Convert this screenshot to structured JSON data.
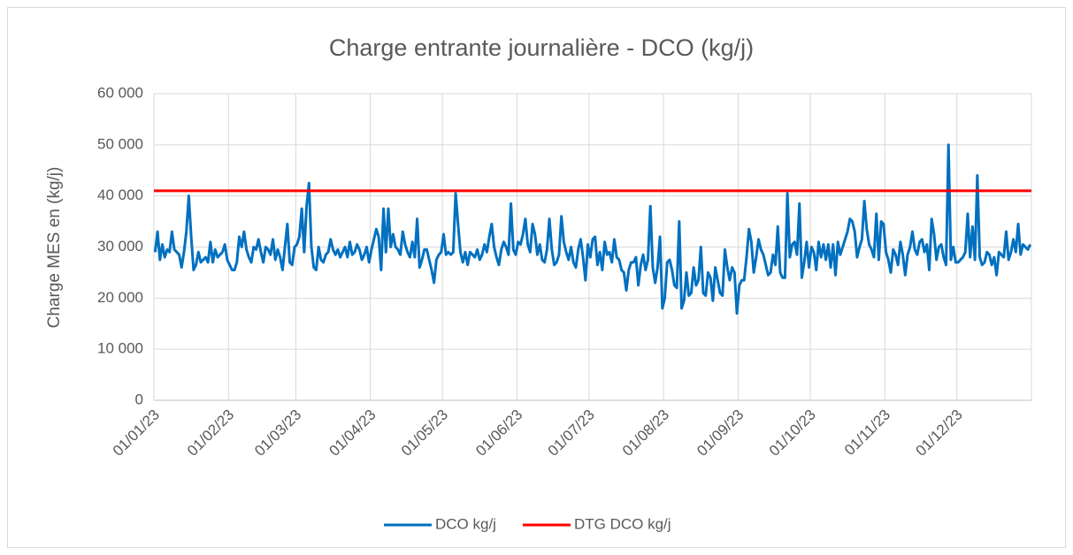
{
  "chart_data": {
    "type": "line",
    "title": "Charge entrante journalière - DCO (kg/j)",
    "y_label": "Charge MES en (kg/j)",
    "categories": [
      "01/01/23",
      null,
      null,
      null,
      null,
      null,
      null,
      null,
      null,
      null,
      null,
      null,
      null,
      null,
      null,
      null,
      null,
      null,
      null,
      null,
      null,
      null,
      null,
      null,
      null,
      null,
      null,
      null,
      null,
      null,
      null,
      "01/02/23",
      null,
      null,
      null,
      null,
      null,
      null,
      null,
      null,
      null,
      null,
      null,
      null,
      null,
      null,
      null,
      null,
      null,
      null,
      null,
      null,
      null,
      null,
      null,
      null,
      null,
      null,
      null,
      "01/03/23",
      null,
      null,
      null,
      null,
      null,
      null,
      null,
      null,
      null,
      null,
      null,
      null,
      null,
      null,
      null,
      null,
      null,
      null,
      null,
      null,
      null,
      null,
      null,
      null,
      null,
      null,
      null,
      null,
      null,
      null,
      "01/04/23",
      null,
      null,
      null,
      null,
      null,
      null,
      null,
      null,
      null,
      null,
      null,
      null,
      null,
      null,
      null,
      null,
      null,
      null,
      null,
      null,
      null,
      null,
      null,
      null,
      null,
      null,
      null,
      null,
      null,
      "01/05/23",
      null,
      null,
      null,
      null,
      null,
      null,
      null,
      null,
      null,
      null,
      null,
      null,
      null,
      null,
      null,
      null,
      null,
      null,
      null,
      null,
      null,
      null,
      null,
      null,
      null,
      null,
      null,
      null,
      null,
      null,
      "01/06/23",
      null,
      null,
      null,
      null,
      null,
      null,
      null,
      null,
      null,
      null,
      null,
      null,
      null,
      null,
      null,
      null,
      null,
      null,
      null,
      null,
      null,
      null,
      null,
      null,
      null,
      null,
      null,
      null,
      null,
      "01/07/23",
      null,
      null,
      null,
      null,
      null,
      null,
      null,
      null,
      null,
      null,
      null,
      null,
      null,
      null,
      null,
      null,
      null,
      null,
      null,
      null,
      null,
      null,
      null,
      null,
      null,
      null,
      null,
      null,
      null,
      null,
      "01/08/23",
      null,
      null,
      null,
      null,
      null,
      null,
      null,
      null,
      null,
      null,
      null,
      null,
      null,
      null,
      null,
      null,
      null,
      null,
      null,
      null,
      null,
      null,
      null,
      null,
      null,
      null,
      null,
      null,
      null,
      null,
      "01/09/23",
      null,
      null,
      null,
      null,
      null,
      null,
      null,
      null,
      null,
      null,
      null,
      null,
      null,
      null,
      null,
      null,
      null,
      null,
      null,
      null,
      null,
      null,
      null,
      null,
      null,
      null,
      null,
      null,
      null,
      "01/10/23",
      null,
      null,
      null,
      null,
      null,
      null,
      null,
      null,
      null,
      null,
      null,
      null,
      null,
      null,
      null,
      null,
      null,
      null,
      null,
      null,
      null,
      null,
      null,
      null,
      null,
      null,
      null,
      null,
      null,
      null,
      "01/11/23",
      null,
      null,
      null,
      null,
      null,
      null,
      null,
      null,
      null,
      null,
      null,
      null,
      null,
      null,
      null,
      null,
      null,
      null,
      null,
      null,
      null,
      null,
      null,
      null,
      null,
      null,
      null,
      null,
      null,
      "01/12/23",
      null,
      null,
      null,
      null,
      null,
      null,
      null,
      null,
      null,
      null,
      null,
      null,
      null,
      null,
      null,
      null,
      null,
      null,
      null,
      null,
      null,
      null,
      null,
      null,
      null,
      null,
      null,
      null,
      null,
      null
    ],
    "series": [
      {
        "name": "DCO kg/j",
        "color": "#0070c0",
        "values": [
          29000,
          33000,
          27500,
          30500,
          28000,
          29500,
          29000,
          33000,
          29500,
          29000,
          28500,
          26000,
          29000,
          33000,
          40000,
          32000,
          25500,
          26500,
          29000,
          27000,
          27500,
          28000,
          27000,
          31000,
          27000,
          29500,
          28000,
          28500,
          29000,
          30500,
          27500,
          26500,
          25500,
          25500,
          27000,
          32000,
          30000,
          33000,
          29500,
          28000,
          27000,
          30000,
          29500,
          31500,
          29000,
          27000,
          30000,
          29500,
          28500,
          31500,
          27500,
          29500,
          28000,
          25500,
          30000,
          34500,
          27000,
          26500,
          30000,
          30500,
          32000,
          37500,
          29000,
          38000,
          42500,
          30000,
          26000,
          25500,
          30000,
          27500,
          27000,
          28500,
          29000,
          31500,
          29500,
          28500,
          29500,
          28000,
          29000,
          30000,
          28000,
          31000,
          28500,
          29000,
          30500,
          29500,
          27500,
          28500,
          30000,
          27000,
          29500,
          31500,
          33500,
          32000,
          25500,
          37500,
          29000,
          37500,
          30000,
          32500,
          30000,
          29500,
          28500,
          33000,
          30500,
          29000,
          28000,
          31000,
          28000,
          35500,
          26000,
          27500,
          29500,
          29500,
          27500,
          25500,
          23000,
          27500,
          28500,
          29000,
          32500,
          28500,
          29000,
          28500,
          29000,
          40500,
          34500,
          29000,
          27000,
          29000,
          26500,
          29000,
          28500,
          28000,
          29500,
          27500,
          28500,
          30500,
          29000,
          32000,
          34500,
          30000,
          28000,
          26500,
          29500,
          31000,
          30000,
          28500,
          38500,
          29500,
          28500,
          31000,
          30500,
          32500,
          35500,
          30500,
          29000,
          34500,
          32500,
          28500,
          30500,
          27500,
          27000,
          29500,
          35500,
          29500,
          26500,
          27000,
          28500,
          36000,
          31000,
          29000,
          27500,
          30000,
          27000,
          26000,
          29500,
          31500,
          28000,
          23500,
          30500,
          28000,
          31500,
          32000,
          26500,
          29000,
          25500,
          31000,
          28500,
          29000,
          27000,
          31500,
          28000,
          27500,
          25500,
          25000,
          21500,
          25500,
          27000,
          27000,
          28000,
          22500,
          26500,
          28500,
          25500,
          27500,
          38000,
          26000,
          23000,
          26000,
          32000,
          18000,
          20000,
          27000,
          27500,
          25500,
          22500,
          22000,
          35000,
          18000,
          19500,
          25000,
          20500,
          21000,
          26000,
          22500,
          23500,
          30000,
          21000,
          20500,
          25000,
          24000,
          19500,
          26000,
          23500,
          21000,
          20500,
          29500,
          26000,
          23500,
          26000,
          25000,
          17000,
          22500,
          23500,
          23500,
          28000,
          33500,
          31000,
          25000,
          28000,
          31500,
          29500,
          28500,
          26500,
          24500,
          25000,
          28500,
          26500,
          34000,
          25000,
          24000,
          24000,
          40500,
          28000,
          30500,
          31000,
          28500,
          38500,
          24000,
          27000,
          31000,
          26000,
          30000,
          29000,
          25500,
          31000,
          28000,
          30500,
          27500,
          30500,
          26000,
          30500,
          24500,
          31000,
          28500,
          30000,
          31500,
          33000,
          35500,
          35000,
          33000,
          28000,
          30000,
          31500,
          39000,
          33500,
          30500,
          29500,
          28000,
          36500,
          27500,
          35000,
          34500,
          29000,
          27500,
          25000,
          29500,
          28500,
          26500,
          31000,
          28500,
          24500,
          28500,
          30000,
          33000,
          29500,
          28500,
          31000,
          31500,
          29000,
          30500,
          25500,
          35500,
          32500,
          27500,
          30000,
          30500,
          28000,
          26500,
          50000,
          27500,
          30000,
          27000,
          27000,
          27500,
          28000,
          29000,
          36500,
          28000,
          34000,
          27500,
          44000,
          28000,
          26500,
          27000,
          29000,
          28500,
          26500,
          28000,
          24500,
          29000,
          28500,
          28000,
          33000,
          27500,
          29000,
          31500,
          29000,
          34500,
          28500,
          30500,
          30000,
          29500,
          30500
        ]
      }
    ],
    "reference_lines": [
      {
        "name": "DTG DCO kg/j",
        "color": "#ff0000",
        "value": 41000
      }
    ],
    "ylim": [
      0,
      60000
    ],
    "yticks": [
      0,
      {
        "value": 10000,
        "label": "10 000"
      },
      {
        "value": 20000,
        "label": "20 000"
      },
      {
        "value": 30000,
        "label": "30 000"
      },
      {
        "value": 40000,
        "label": "40 000"
      },
      {
        "value": 50000,
        "label": "50 000"
      },
      {
        "value": 60000,
        "label": "60 000"
      }
    ],
    "grid": true,
    "legend": "bottom"
  }
}
